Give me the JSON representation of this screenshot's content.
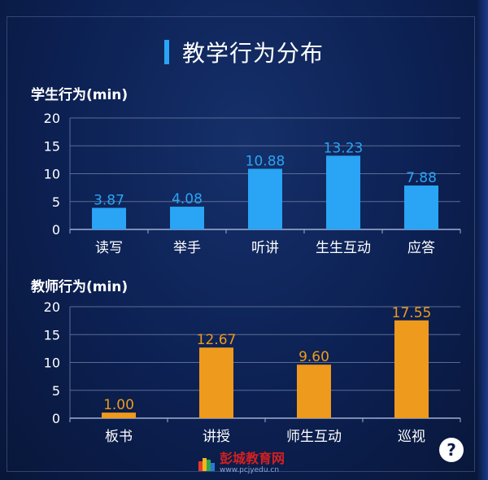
{
  "panel_title": "教学行为分布",
  "help_label": "?",
  "watermark": {
    "name": "彭城教育网",
    "url": "www.pcjyedu.cn"
  },
  "colors": {
    "student_bar": "#2aa4f4",
    "teacher_bar": "#ee9a1c",
    "grid": "#5a6c95",
    "accent": "#2aa4f4"
  },
  "chart_data": [
    {
      "type": "bar",
      "title": "学生行为(min)",
      "categories": [
        "读写",
        "举手",
        "听讲",
        "生生互动",
        "应答"
      ],
      "values": [
        3.87,
        4.08,
        10.88,
        13.23,
        7.88
      ],
      "value_labels": [
        "3.87",
        "4.08",
        "10.88",
        "13.23",
        "7.88"
      ],
      "yticks": [
        "0",
        "5",
        "10",
        "15",
        "20"
      ],
      "ylim": [
        0,
        20
      ],
      "grid": true,
      "xlabel": "",
      "ylabel": ""
    },
    {
      "type": "bar",
      "title": "教师行为(min)",
      "categories": [
        "板书",
        "讲授",
        "师生互动",
        "巡视"
      ],
      "values": [
        1.0,
        12.67,
        9.6,
        17.55
      ],
      "value_labels": [
        "1.00",
        "12.67",
        "9.60",
        "17.55"
      ],
      "yticks": [
        "0",
        "5",
        "10",
        "15",
        "20"
      ],
      "ylim": [
        0,
        20
      ],
      "grid": true,
      "xlabel": "",
      "ylabel": ""
    }
  ]
}
